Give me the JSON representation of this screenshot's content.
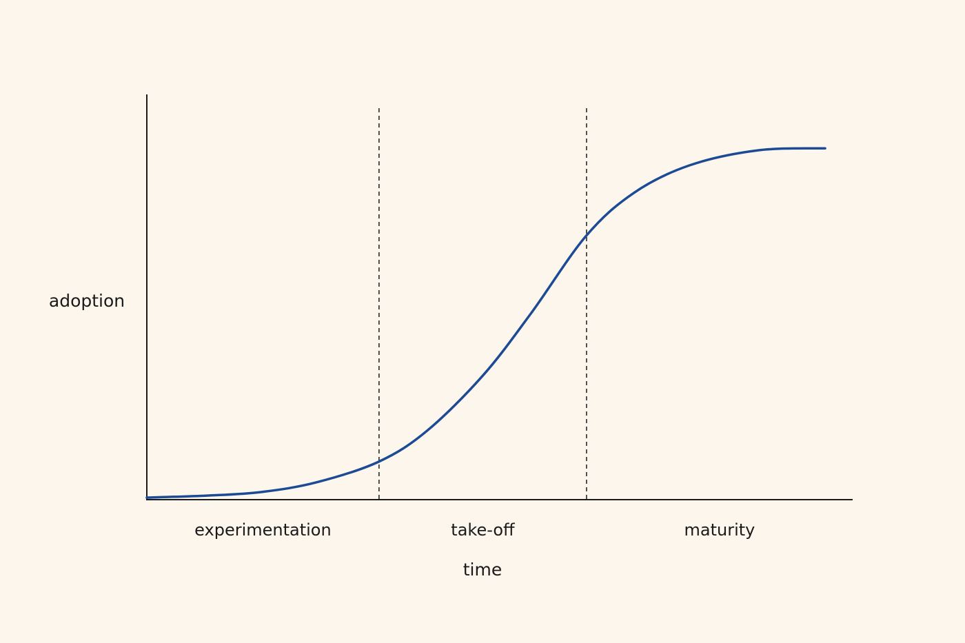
{
  "chart_data": {
    "type": "line",
    "x_label": "time",
    "y_label": "adoption",
    "xlim": [
      0,
      100
    ],
    "ylim": [
      0,
      100
    ],
    "x": [
      0,
      8.5,
      16.3,
      24.1,
      32.9,
      39.7,
      47.6,
      54.4,
      62.2,
      69.0,
      76.9,
      86.6,
      96.1
    ],
    "series": [
      {
        "color": "#1c4a94",
        "values": [
          0.5,
          1.0,
          1.9,
          4.3,
          9.4,
          17.0,
          30.6,
          45.9,
          65.0,
          75.7,
          82.5,
          86.2,
          86.7
        ]
      }
    ],
    "phases": [
      "experimentation",
      "take-off",
      "maturity"
    ],
    "phase_boundaries": [
      32.9,
      62.3
    ]
  }
}
